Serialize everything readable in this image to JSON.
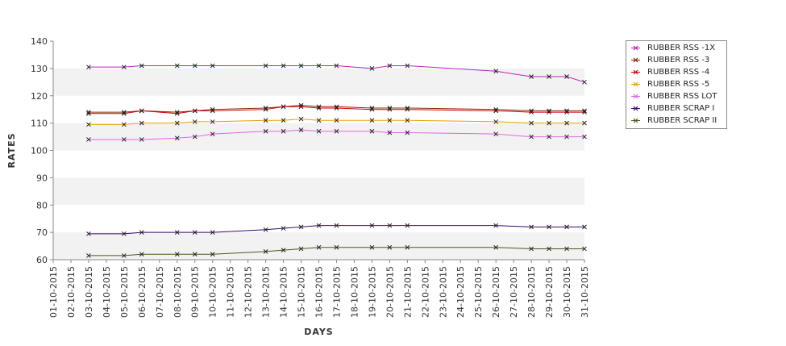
{
  "chart_data": {
    "type": "line",
    "title": "",
    "xlabel": "DAYS",
    "ylabel": "RATES",
    "ylim": [
      60,
      140
    ],
    "yticks": [
      60,
      70,
      80,
      90,
      100,
      110,
      120,
      130,
      140
    ],
    "grid": "horizontal alternating bands",
    "legend_position": "right",
    "x": [
      "01-10-2015",
      "02-10-2015",
      "03-10-2015",
      "04-10-2015",
      "05-10-2015",
      "06-10-2015",
      "07-10-2015",
      "08-10-2015",
      "09-10-2015",
      "10-10-2015",
      "11-10-2015",
      "12-10-2015",
      "13-10-2015",
      "14-10-2015",
      "15-10-2015",
      "16-10-2015",
      "17-10-2015",
      "18-10-2015",
      "19-10-2015",
      "20-10-2015",
      "21-10-2015",
      "22-10-2015",
      "23-10-2015",
      "24-10-2015",
      "25-10-2015",
      "26-10-2015",
      "27-10-2015",
      "28-10-2015",
      "29-10-2015",
      "30-10-2015",
      "31-10-2015"
    ],
    "series": [
      {
        "name": "RUBBER RSS -1X",
        "color": "#c020c0",
        "points": [
          [
            "03-10-2015",
            130.5
          ],
          [
            "05-10-2015",
            130.5
          ],
          [
            "06-10-2015",
            131
          ],
          [
            "08-10-2015",
            131
          ],
          [
            "09-10-2015",
            131
          ],
          [
            "10-10-2015",
            131
          ],
          [
            "13-10-2015",
            131
          ],
          [
            "14-10-2015",
            131
          ],
          [
            "15-10-2015",
            131
          ],
          [
            "16-10-2015",
            131
          ],
          [
            "17-10-2015",
            131
          ],
          [
            "19-10-2015",
            130
          ],
          [
            "20-10-2015",
            131
          ],
          [
            "21-10-2015",
            131
          ],
          [
            "26-10-2015",
            129
          ],
          [
            "28-10-2015",
            127
          ],
          [
            "29-10-2015",
            127
          ],
          [
            "30-10-2015",
            127
          ],
          [
            "31-10-2015",
            125
          ]
        ]
      },
      {
        "name": "RUBBER RSS -3",
        "color": "#8b2500",
        "points": [
          [
            "03-10-2015",
            114
          ],
          [
            "05-10-2015",
            114
          ],
          [
            "06-10-2015",
            114.5
          ],
          [
            "08-10-2015",
            114
          ],
          [
            "09-10-2015",
            114.5
          ],
          [
            "10-10-2015",
            115
          ],
          [
            "13-10-2015",
            115.5
          ],
          [
            "14-10-2015",
            116
          ],
          [
            "15-10-2015",
            116.5
          ],
          [
            "16-10-2015",
            116
          ],
          [
            "17-10-2015",
            116
          ],
          [
            "19-10-2015",
            115.5
          ],
          [
            "20-10-2015",
            115.5
          ],
          [
            "21-10-2015",
            115.5
          ],
          [
            "26-10-2015",
            115
          ],
          [
            "28-10-2015",
            114.5
          ],
          [
            "29-10-2015",
            114.5
          ],
          [
            "30-10-2015",
            114.5
          ],
          [
            "31-10-2015",
            114.5
          ]
        ]
      },
      {
        "name": "RUBBER RSS -4",
        "color": "#cc0000",
        "points": [
          [
            "03-10-2015",
            113.5
          ],
          [
            "05-10-2015",
            113.5
          ],
          [
            "06-10-2015",
            114.5
          ],
          [
            "08-10-2015",
            113.5
          ],
          [
            "09-10-2015",
            114.5
          ],
          [
            "10-10-2015",
            114.5
          ],
          [
            "13-10-2015",
            115
          ],
          [
            "14-10-2015",
            116
          ],
          [
            "15-10-2015",
            116
          ],
          [
            "16-10-2015",
            115.5
          ],
          [
            "17-10-2015",
            115.5
          ],
          [
            "19-10-2015",
            115
          ],
          [
            "20-10-2015",
            115
          ],
          [
            "21-10-2015",
            115
          ],
          [
            "26-10-2015",
            114.5
          ],
          [
            "28-10-2015",
            114
          ],
          [
            "29-10-2015",
            114
          ],
          [
            "30-10-2015",
            114
          ],
          [
            "31-10-2015",
            114
          ]
        ]
      },
      {
        "name": "RUBBER RSS -5",
        "color": "#e8a000",
        "points": [
          [
            "03-10-2015",
            109.5
          ],
          [
            "05-10-2015",
            109.5
          ],
          [
            "06-10-2015",
            110
          ],
          [
            "08-10-2015",
            110
          ],
          [
            "09-10-2015",
            110.5
          ],
          [
            "10-10-2015",
            110.5
          ],
          [
            "13-10-2015",
            111
          ],
          [
            "14-10-2015",
            111
          ],
          [
            "15-10-2015",
            111.5
          ],
          [
            "16-10-2015",
            111
          ],
          [
            "17-10-2015",
            111
          ],
          [
            "19-10-2015",
            111
          ],
          [
            "20-10-2015",
            111
          ],
          [
            "21-10-2015",
            111
          ],
          [
            "26-10-2015",
            110.5
          ],
          [
            "28-10-2015",
            110
          ],
          [
            "29-10-2015",
            110
          ],
          [
            "30-10-2015",
            110
          ],
          [
            "31-10-2015",
            110
          ]
        ]
      },
      {
        "name": "RUBBER RSS LOT",
        "color": "#e066e0",
        "points": [
          [
            "03-10-2015",
            104
          ],
          [
            "05-10-2015",
            104
          ],
          [
            "06-10-2015",
            104
          ],
          [
            "08-10-2015",
            104.5
          ],
          [
            "09-10-2015",
            105
          ],
          [
            "10-10-2015",
            106
          ],
          [
            "13-10-2015",
            107
          ],
          [
            "14-10-2015",
            107
          ],
          [
            "15-10-2015",
            107.5
          ],
          [
            "16-10-2015",
            107
          ],
          [
            "17-10-2015",
            107
          ],
          [
            "19-10-2015",
            107
          ],
          [
            "20-10-2015",
            106.5
          ],
          [
            "21-10-2015",
            106.5
          ],
          [
            "26-10-2015",
            106
          ],
          [
            "28-10-2015",
            105
          ],
          [
            "29-10-2015",
            105
          ],
          [
            "30-10-2015",
            105
          ],
          [
            "31-10-2015",
            105
          ]
        ]
      },
      {
        "name": "RUBBER SCRAP I",
        "color": "#3a0a6e",
        "points": [
          [
            "03-10-2015",
            69.5
          ],
          [
            "05-10-2015",
            69.5
          ],
          [
            "06-10-2015",
            70
          ],
          [
            "08-10-2015",
            70
          ],
          [
            "09-10-2015",
            70
          ],
          [
            "10-10-2015",
            70
          ],
          [
            "13-10-2015",
            71
          ],
          [
            "14-10-2015",
            71.5
          ],
          [
            "15-10-2015",
            72
          ],
          [
            "16-10-2015",
            72.5
          ],
          [
            "17-10-2015",
            72.5
          ],
          [
            "19-10-2015",
            72.5
          ],
          [
            "20-10-2015",
            72.5
          ],
          [
            "21-10-2015",
            72.5
          ],
          [
            "26-10-2015",
            72.5
          ],
          [
            "28-10-2015",
            72
          ],
          [
            "29-10-2015",
            72
          ],
          [
            "30-10-2015",
            72
          ],
          [
            "31-10-2015",
            72
          ]
        ]
      },
      {
        "name": "RUBBER SCRAP II",
        "color": "#4a5a1a",
        "points": [
          [
            "03-10-2015",
            61.5
          ],
          [
            "05-10-2015",
            61.5
          ],
          [
            "06-10-2015",
            62
          ],
          [
            "08-10-2015",
            62
          ],
          [
            "09-10-2015",
            62
          ],
          [
            "10-10-2015",
            62
          ],
          [
            "13-10-2015",
            63
          ],
          [
            "14-10-2015",
            63.5
          ],
          [
            "15-10-2015",
            64
          ],
          [
            "16-10-2015",
            64.5
          ],
          [
            "17-10-2015",
            64.5
          ],
          [
            "19-10-2015",
            64.5
          ],
          [
            "20-10-2015",
            64.5
          ],
          [
            "21-10-2015",
            64.5
          ],
          [
            "26-10-2015",
            64.5
          ],
          [
            "28-10-2015",
            64
          ],
          [
            "29-10-2015",
            64
          ],
          [
            "30-10-2015",
            64
          ],
          [
            "31-10-2015",
            64
          ]
        ]
      }
    ]
  },
  "colors": {
    "band": "#f2f2f2",
    "axis": "#888888",
    "gridline": "#ffffff"
  }
}
